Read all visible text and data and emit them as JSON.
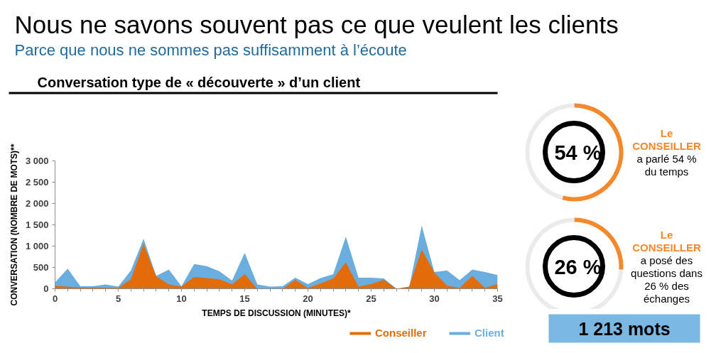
{
  "chart_data": [
    {
      "type": "other",
      "title": "Nous ne savons souvent pas ce que veulent les clients",
      "subtitle": "Parce que nous ne sommes pas suffisamment à l’écoute"
    },
    {
      "type": "area",
      "title": "Conversation type de « découverte » d’un client",
      "xlabel": "TEMPS DE DISCUSSION (MINUTES)*",
      "ylabel": "CONVERSATION (NOMBRE DE MOTS)**",
      "x": [
        0,
        1,
        2,
        3,
        4,
        5,
        6,
        7,
        8,
        9,
        10,
        11,
        12,
        13,
        14,
        15,
        16,
        17,
        18,
        19,
        20,
        21,
        22,
        23,
        24,
        25,
        26,
        27,
        28,
        29,
        30,
        31,
        32,
        33,
        34,
        35
      ],
      "series": [
        {
          "name": "Conseiller",
          "color": "#e36c0a",
          "values": [
            70,
            50,
            30,
            30,
            20,
            20,
            220,
            1050,
            290,
            100,
            50,
            280,
            250,
            220,
            100,
            340,
            0,
            0,
            0,
            210,
            20,
            120,
            240,
            620,
            50,
            110,
            210,
            0,
            50,
            920,
            380,
            70,
            20,
            300,
            20,
            110
          ]
        },
        {
          "name": "Client",
          "color": "#6aaee0",
          "values": [
            150,
            470,
            60,
            60,
            100,
            50,
            430,
            1170,
            300,
            450,
            60,
            580,
            530,
            410,
            190,
            840,
            100,
            50,
            60,
            260,
            110,
            250,
            340,
            1220,
            260,
            260,
            240,
            0,
            20,
            1480,
            390,
            430,
            200,
            450,
            390,
            320
          ]
        }
      ],
      "xlim": [
        0,
        35
      ],
      "ylim": [
        0,
        3000
      ],
      "xticks": [
        0,
        {
          "value": 1,
          "label": null
        },
        {
          "value": 2,
          "label": null
        },
        {
          "value": 3,
          "label": null
        },
        {
          "value": 4,
          "label": null
        },
        5,
        {
          "value": 6,
          "label": null
        },
        {
          "value": 7,
          "label": null
        },
        {
          "value": 8,
          "label": null
        },
        {
          "value": 9,
          "label": null
        },
        10,
        {
          "value": 11,
          "label": null
        },
        {
          "value": 12,
          "label": null
        },
        {
          "value": 13,
          "label": null
        },
        {
          "value": 14,
          "label": null
        },
        15,
        {
          "value": 16,
          "label": null
        },
        {
          "value": 17,
          "label": null
        },
        {
          "value": 18,
          "label": null
        },
        {
          "value": 19,
          "label": null
        },
        20,
        {
          "value": 21,
          "label": null
        },
        {
          "value": 22,
          "label": null
        },
        {
          "value": 23,
          "label": null
        },
        {
          "value": 24,
          "label": null
        },
        25,
        {
          "value": 26,
          "label": null
        },
        {
          "value": 27,
          "label": null
        },
        {
          "value": 28,
          "label": null
        },
        {
          "value": 29,
          "label": null
        },
        30,
        {
          "value": 31,
          "label": null
        },
        {
          "value": 32,
          "label": null
        },
        {
          "value": 33,
          "label": null
        },
        {
          "value": 34,
          "label": null
        },
        35
      ],
      "yticks": [
        0,
        500,
        {
          "value": 1000,
          "label": "1 000"
        },
        {
          "value": 1500,
          "label": "1 500"
        },
        {
          "value": 2000,
          "label": "2 000"
        },
        {
          "value": 2500,
          "label": "2 500"
        },
        {
          "value": 3000,
          "label": "3 000"
        }
      ],
      "grid": false,
      "legend": "bottom right"
    },
    {
      "type": "donut",
      "categories": [
        null,
        null
      ],
      "values": [
        54,
        46
      ],
      "colors": [
        "#f5882b",
        "#ebebeb"
      ],
      "annotations": [
        "54 %"
      ],
      "title": "Le\nCONSEILLER",
      "subtitle": "a parlé 54 %\ndu temps"
    },
    {
      "type": "donut",
      "categories": [
        null,
        null
      ],
      "values": [
        26,
        74
      ],
      "colors": [
        "#f5882b",
        "#ebebeb"
      ],
      "annotations": [
        "26 %"
      ],
      "title": "Le\nCONSEILLER",
      "subtitle": "a posé des\nquestions dans\n26 % des\néchanges"
    },
    {
      "type": "other",
      "annotations": [
        "1 213 mots"
      ]
    }
  ]
}
